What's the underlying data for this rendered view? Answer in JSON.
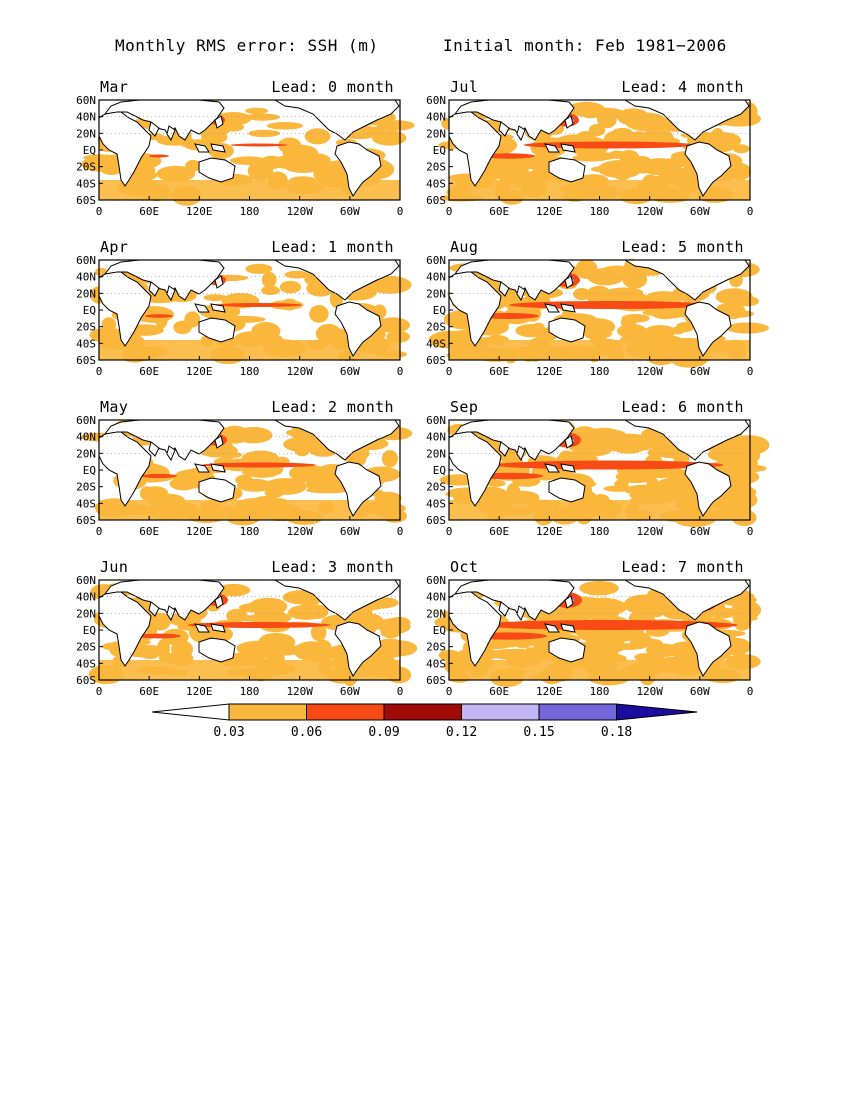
{
  "header": {
    "left_title": "Monthly RMS error: SSH (m)",
    "right_title": "Initial month: Feb 1981−2006"
  },
  "axes": {
    "lat_labels": [
      "60N",
      "40N",
      "20N",
      "EQ",
      "20S",
      "40S",
      "60S"
    ],
    "lon_labels": [
      "0",
      "60E",
      "120E",
      "180",
      "120W",
      "60W",
      "0"
    ]
  },
  "panels": [
    {
      "month": "Mar",
      "lead": "Lead: 0 month",
      "level": 0
    },
    {
      "month": "Jul",
      "lead": "Lead: 4 month",
      "level": 4
    },
    {
      "month": "Apr",
      "lead": "Lead: 1 month",
      "level": 1
    },
    {
      "month": "Aug",
      "lead": "Lead: 5 month",
      "level": 5
    },
    {
      "month": "May",
      "lead": "Lead: 2 month",
      "level": 2
    },
    {
      "month": "Sep",
      "lead": "Lead: 6 month",
      "level": 6
    },
    {
      "month": "Jun",
      "lead": "Lead: 3 month",
      "level": 3
    },
    {
      "month": "Oct",
      "lead": "Lead: 7 month",
      "level": 7
    }
  ],
  "colorbar": {
    "labels": [
      "0.03",
      "0.06",
      "0.09",
      "0.12",
      "0.15",
      "0.18"
    ],
    "colors": [
      "#ffffff",
      "#fbb73c",
      "#f74a14",
      "#a10a07",
      "#c2b6f5",
      "#7465d9",
      "#1b0d9e"
    ],
    "outline": "#000000"
  }
}
